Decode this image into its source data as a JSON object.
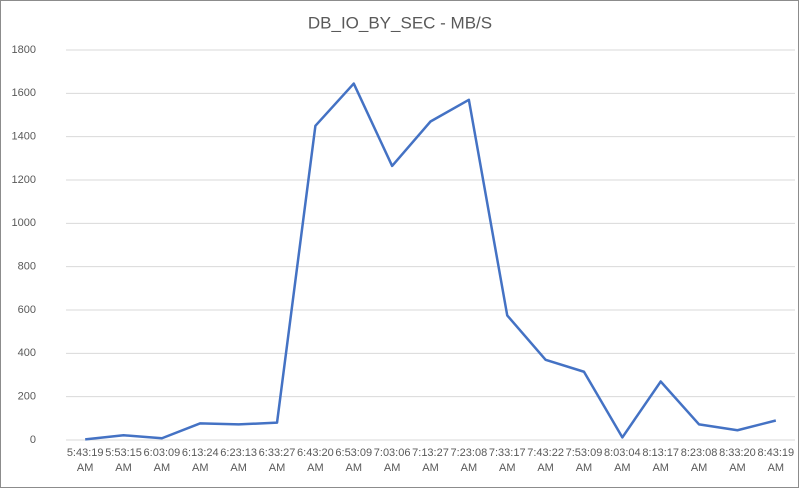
{
  "chart_data": {
    "type": "line",
    "title": "DB_IO_BY_SEC - MB/S",
    "categories": [
      "5:43:19 AM",
      "5:53:15 AM",
      "6:03:09 AM",
      "6:13:24 AM",
      "6:23:13 AM",
      "6:33:27 AM",
      "6:43:20 AM",
      "6:53:09 AM",
      "7:03:06 AM",
      "7:13:27 AM",
      "7:23:08 AM",
      "7:33:17 AM",
      "7:43:22 AM",
      "7:53:09 AM",
      "8:03:04 AM",
      "8:13:17 AM",
      "8:23:08 AM",
      "8:33:20 AM",
      "8:43:19 AM"
    ],
    "values": [
      3,
      22,
      8,
      77,
      72,
      80,
      1450,
      1645,
      1265,
      1470,
      1570,
      575,
      370,
      315,
      12,
      270,
      72,
      45,
      90
    ],
    "color": "#4472c4",
    "ylim": [
      0,
      1800
    ],
    "yticks": [
      0,
      200,
      400,
      600,
      800,
      1000,
      1200,
      1400,
      1600,
      1800
    ],
    "grid": true
  }
}
